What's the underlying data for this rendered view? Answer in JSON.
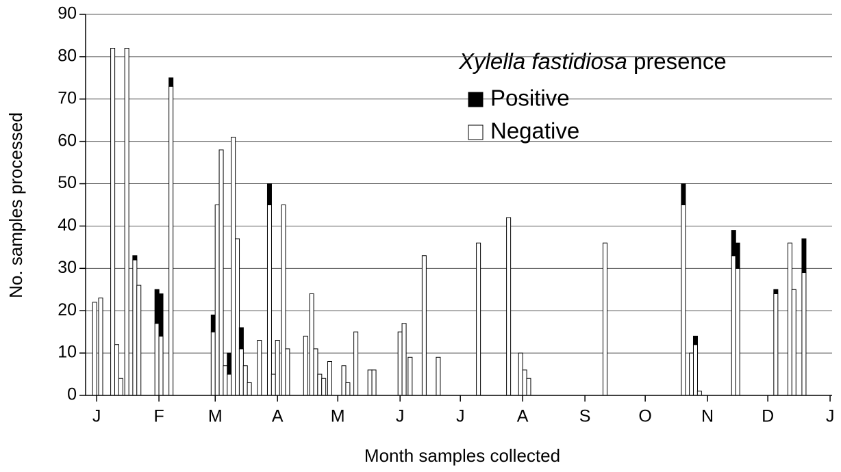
{
  "chart_data": {
    "type": "bar",
    "stacked": true,
    "xlabel": "Month samples collected",
    "ylabel": "No. samples processed",
    "legend_title": [
      "Xylella fastidiosa",
      "presence"
    ],
    "grid": true,
    "xlim": [
      -5.5,
      366
    ],
    "xticks": [
      {
        "value": 0,
        "label": "J"
      },
      {
        "value": 31,
        "label": "F"
      },
      {
        "value": 59,
        "label": "M"
      },
      {
        "value": 90,
        "label": "A"
      },
      {
        "value": 120,
        "label": "M"
      },
      {
        "value": 151,
        "label": "J"
      },
      {
        "value": 181,
        "label": "J"
      },
      {
        "value": 212,
        "label": "A"
      },
      {
        "value": 243,
        "label": "S"
      },
      {
        "value": 273,
        "label": "O"
      },
      {
        "value": 304,
        "label": "N"
      },
      {
        "value": 334,
        "label": "D"
      },
      {
        "value": 365,
        "label": "J"
      }
    ],
    "ylim": [
      0,
      90
    ],
    "yticks": [
      0,
      10,
      20,
      30,
      40,
      50,
      60,
      70,
      80,
      90
    ],
    "x": [
      -1,
      2,
      8,
      10,
      12,
      15,
      19,
      21,
      30,
      32,
      37,
      58,
      60,
      62,
      64,
      66,
      68,
      70,
      72,
      74,
      76,
      81,
      86,
      88,
      90,
      93,
      95,
      104,
      107,
      109,
      111,
      113,
      116,
      123,
      125,
      129,
      136,
      138,
      151,
      153,
      156,
      163,
      170,
      190,
      205,
      211,
      213,
      215,
      253,
      292,
      296,
      298,
      300,
      317,
      319,
      338,
      345,
      347,
      352
    ],
    "series": [
      {
        "name": "Positive",
        "color": "#000000",
        "values": [
          0,
          0,
          0,
          0,
          0,
          0,
          1,
          0,
          8,
          10,
          2,
          4,
          0,
          0,
          0,
          5,
          0,
          0,
          5,
          0,
          0,
          0,
          5,
          0,
          0,
          0,
          0,
          0,
          0,
          0,
          0,
          0,
          0,
          0,
          0,
          0,
          0,
          0,
          0,
          0,
          0,
          0,
          0,
          0,
          0,
          0,
          0,
          0,
          0,
          5,
          0,
          2,
          0,
          6,
          6,
          1,
          0,
          0,
          8
        ]
      },
      {
        "name": "Negative",
        "color": "#ffffff",
        "values": [
          22,
          23,
          82,
          12,
          4,
          82,
          32,
          26,
          17,
          14,
          73,
          15,
          45,
          58,
          7,
          5,
          61,
          37,
          11,
          7,
          3,
          13,
          45,
          5,
          13,
          45,
          11,
          14,
          24,
          11,
          5,
          4,
          8,
          7,
          3,
          15,
          6,
          6,
          15,
          17,
          9,
          33,
          9,
          36,
          42,
          10,
          6,
          4,
          36,
          45,
          10,
          12,
          1,
          33,
          30,
          24,
          36,
          25,
          29
        ]
      }
    ]
  }
}
